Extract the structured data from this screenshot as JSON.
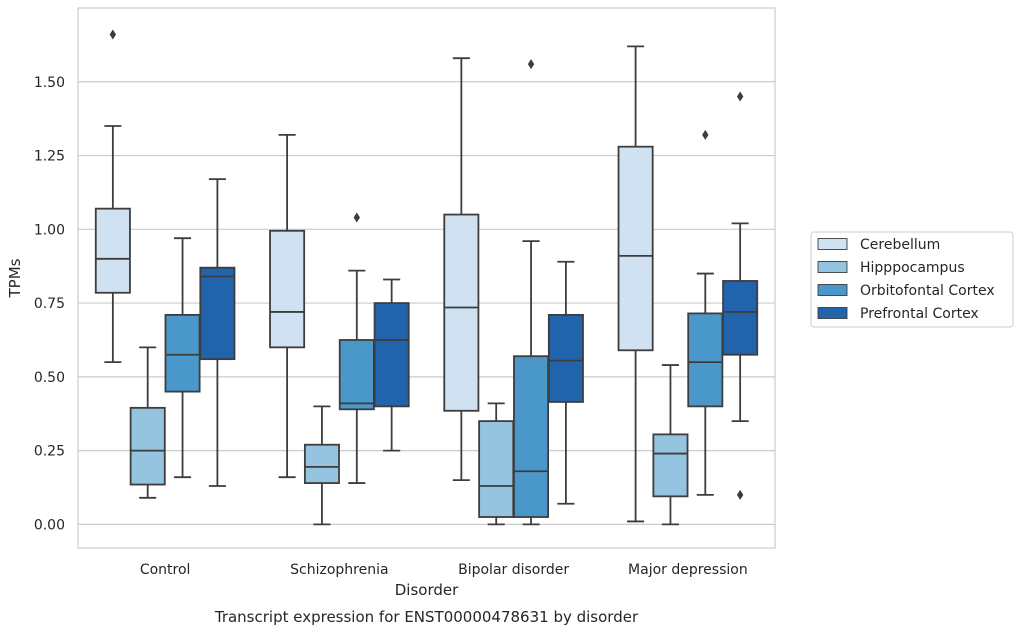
{
  "chart_data": {
    "type": "boxplot",
    "title": "Transcript expression for ENST00000478631 by disorder",
    "xlabel": "Disorder",
    "ylabel": "TPMs",
    "ylim": [
      -0.08,
      1.75
    ],
    "yticks": [
      "0.00",
      "0.25",
      "0.50",
      "0.75",
      "1.00",
      "1.25",
      "1.50"
    ],
    "ytick_values": [
      0,
      0.25,
      0.5,
      0.75,
      1.0,
      1.25,
      1.5
    ],
    "grid": true,
    "legend_position": "right",
    "categories": [
      "Control",
      "Schizophrenia",
      "Bipolar disorder",
      "Major depression"
    ],
    "series": [
      {
        "name": "Cerebellum",
        "color": "#d0e1f2",
        "boxes": [
          {
            "whisker_low": 0.55,
            "q1": 0.785,
            "median": 0.9,
            "q3": 1.07,
            "whisker_high": 1.35,
            "outliers": [
              1.66
            ]
          },
          {
            "whisker_low": 0.16,
            "q1": 0.6,
            "median": 0.72,
            "q3": 0.995,
            "whisker_high": 1.32,
            "outliers": []
          },
          {
            "whisker_low": 0.15,
            "q1": 0.385,
            "median": 0.735,
            "q3": 1.05,
            "whisker_high": 1.58,
            "outliers": []
          },
          {
            "whisker_low": 0.01,
            "q1": 0.59,
            "median": 0.91,
            "q3": 1.28,
            "whisker_high": 1.62,
            "outliers": []
          }
        ]
      },
      {
        "name": "Hipppocampus",
        "color": "#94c4df",
        "boxes": [
          {
            "whisker_low": 0.09,
            "q1": 0.135,
            "median": 0.25,
            "q3": 0.395,
            "whisker_high": 0.6,
            "outliers": []
          },
          {
            "whisker_low": 0.0,
            "q1": 0.14,
            "median": 0.195,
            "q3": 0.27,
            "whisker_high": 0.4,
            "outliers": []
          },
          {
            "whisker_low": 0.0,
            "q1": 0.025,
            "median": 0.13,
            "q3": 0.35,
            "whisker_high": 0.41,
            "outliers": []
          },
          {
            "whisker_low": 0.0,
            "q1": 0.095,
            "median": 0.24,
            "q3": 0.305,
            "whisker_high": 0.54,
            "outliers": []
          }
        ]
      },
      {
        "name": "Orbitofontal Cortex",
        "color": "#4a98c9",
        "boxes": [
          {
            "whisker_low": 0.16,
            "q1": 0.45,
            "median": 0.575,
            "q3": 0.71,
            "whisker_high": 0.97,
            "outliers": []
          },
          {
            "whisker_low": 0.14,
            "q1": 0.39,
            "median": 0.41,
            "q3": 0.625,
            "whisker_high": 0.86,
            "outliers": [
              1.04
            ]
          },
          {
            "whisker_low": 0.0,
            "q1": 0.025,
            "median": 0.18,
            "q3": 0.57,
            "whisker_high": 0.96,
            "outliers": [
              1.56
            ]
          },
          {
            "whisker_low": 0.1,
            "q1": 0.4,
            "median": 0.55,
            "q3": 0.715,
            "whisker_high": 0.85,
            "outliers": [
              1.32
            ]
          }
        ]
      },
      {
        "name": "Prefrontal Cortex",
        "color": "#2164ab",
        "boxes": [
          {
            "whisker_low": 0.13,
            "q1": 0.56,
            "median": 0.84,
            "q3": 0.87,
            "whisker_high": 1.17,
            "outliers": []
          },
          {
            "whisker_low": 0.25,
            "q1": 0.4,
            "median": 0.625,
            "q3": 0.75,
            "whisker_high": 0.83,
            "outliers": []
          },
          {
            "whisker_low": 0.07,
            "q1": 0.415,
            "median": 0.555,
            "q3": 0.71,
            "whisker_high": 0.89,
            "outliers": []
          },
          {
            "whisker_low": 0.35,
            "q1": 0.575,
            "median": 0.72,
            "q3": 0.825,
            "whisker_high": 1.02,
            "outliers": [
              0.1,
              1.45
            ]
          }
        ]
      }
    ]
  }
}
